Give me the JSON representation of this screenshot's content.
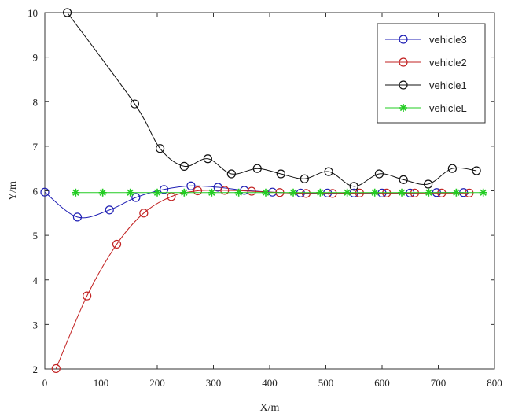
{
  "chart_data": {
    "type": "line",
    "xlabel": "X/m",
    "ylabel": "Y/m",
    "xlim": [
      0,
      800
    ],
    "ylim": [
      2,
      10
    ],
    "xticks": [
      0,
      100,
      200,
      300,
      400,
      500,
      600,
      700,
      800
    ],
    "yticks": [
      2,
      3,
      4,
      5,
      6,
      7,
      8,
      9,
      10
    ],
    "grid": false,
    "legend_position": "top-right",
    "series": [
      {
        "name": "vehicle3",
        "color": "#1f1fb4",
        "marker": "circle",
        "x": [
          0,
          58,
          115,
          162,
          212,
          260,
          308,
          355,
          405,
          455,
          503,
          550,
          600,
          650,
          697,
          745
        ],
        "y": [
          5.97,
          5.41,
          5.57,
          5.85,
          6.03,
          6.11,
          6.08,
          6.01,
          5.97,
          5.95,
          5.95,
          5.95,
          5.95,
          5.95,
          5.96,
          5.96
        ]
      },
      {
        "name": "vehicle2",
        "color": "#c22222",
        "marker": "circle",
        "x": [
          20,
          75,
          128,
          176,
          225,
          272,
          320,
          368,
          418,
          465,
          512,
          560,
          608,
          658,
          706,
          755
        ],
        "y": [
          2.01,
          3.64,
          4.8,
          5.5,
          5.87,
          6.0,
          6.01,
          5.99,
          5.96,
          5.94,
          5.94,
          5.95,
          5.95,
          5.95,
          5.95,
          5.95
        ]
      },
      {
        "name": "vehicle1",
        "color": "#111111",
        "marker": "circle",
        "x": [
          40,
          160,
          205,
          248,
          290,
          332,
          378,
          420,
          462,
          505,
          550,
          595,
          638,
          682,
          725,
          768
        ],
        "y": [
          10.0,
          7.95,
          6.95,
          6.55,
          6.72,
          6.38,
          6.5,
          6.38,
          6.27,
          6.43,
          6.1,
          6.38,
          6.25,
          6.15,
          6.5,
          6.45
        ]
      },
      {
        "name": "vehicleL",
        "color": "#22cc22",
        "marker": "star",
        "x": [
          55,
          103,
          152,
          200,
          248,
          297,
          345,
          393,
          442,
          490,
          538,
          587,
          635,
          683,
          732,
          780
        ],
        "y": [
          5.96,
          5.96,
          5.96,
          5.96,
          5.96,
          5.96,
          5.96,
          5.96,
          5.96,
          5.96,
          5.96,
          5.96,
          5.96,
          5.96,
          5.96,
          5.96
        ]
      }
    ]
  }
}
